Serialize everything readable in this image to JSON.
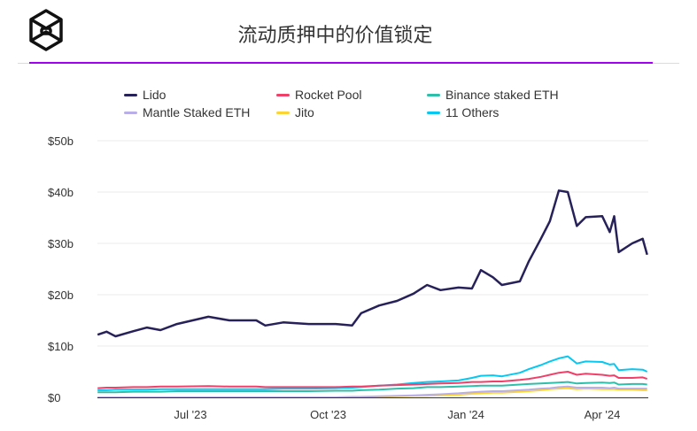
{
  "header": {
    "title": "流动质押中的价值锁定",
    "logo": "cube-logo"
  },
  "accent": "#a100f2",
  "chart_data": {
    "type": "line",
    "title": "流动质押中的价值锁定",
    "ylim": [
      0,
      50
    ],
    "yticks": [
      "$0",
      "$10b",
      "$20b",
      "$30b",
      "$40b",
      "$50b"
    ],
    "ytick_values": [
      0,
      10,
      20,
      30,
      40,
      50
    ],
    "xticks": [
      "Jul '23",
      "Oct '23",
      "Jan '24",
      "Apr '24"
    ],
    "xtick_dates": [
      "2023-07-01",
      "2023-10-01",
      "2024-01-01",
      "2024-04-01"
    ],
    "grid": true,
    "legend_placement": "top",
    "x": [
      "2023-04-30",
      "2023-05-06",
      "2023-05-12",
      "2023-05-24",
      "2023-06-02",
      "2023-06-11",
      "2023-06-22",
      "2023-07-13",
      "2023-07-27",
      "2023-08-14",
      "2023-08-20",
      "2023-09-01",
      "2023-09-18",
      "2023-10-06",
      "2023-10-17",
      "2023-10-23",
      "2023-11-04",
      "2023-11-16",
      "2023-11-27",
      "2023-12-06",
      "2023-12-15",
      "2023-12-27",
      "2024-01-05",
      "2024-01-11",
      "2024-01-19",
      "2024-01-25",
      "2024-02-06",
      "2024-02-12",
      "2024-02-20",
      "2024-02-26",
      "2024-03-03",
      "2024-03-09",
      "2024-03-15",
      "2024-03-21",
      "2024-04-01",
      "2024-04-06",
      "2024-04-09",
      "2024-04-12",
      "2024-04-21",
      "2024-04-28",
      "2024-05-01"
    ],
    "series": [
      {
        "name": "Lido",
        "color": "#27215a",
        "values": [
          12.2,
          12.8,
          11.9,
          12.9,
          13.6,
          13.1,
          14.3,
          15.7,
          15.0,
          15.0,
          14.0,
          14.6,
          14.3,
          14.3,
          14.0,
          16.4,
          17.9,
          18.8,
          20.2,
          21.9,
          20.9,
          21.4,
          21.2,
          24.8,
          23.4,
          21.9,
          22.6,
          26.5,
          30.9,
          34.3,
          40.3,
          40.0,
          33.4,
          35.1,
          35.3,
          32.2,
          35.3,
          28.3,
          30.0,
          30.9,
          27.8
        ]
      },
      {
        "name": "Rocket Pool",
        "color": "#f0406a",
        "values": [
          1.8,
          1.9,
          1.9,
          2.0,
          2.0,
          2.1,
          2.1,
          2.2,
          2.1,
          2.1,
          2.0,
          2.0,
          2.0,
          2.0,
          2.1,
          2.1,
          2.3,
          2.4,
          2.5,
          2.6,
          2.7,
          2.8,
          3.0,
          3.0,
          3.1,
          3.1,
          3.4,
          3.6,
          4.0,
          4.4,
          4.8,
          5.0,
          4.4,
          4.6,
          4.4,
          4.2,
          4.3,
          3.8,
          3.8,
          3.9,
          3.6
        ]
      },
      {
        "name": "Binance staked ETH",
        "color": "#2ebfab",
        "values": [
          1.0,
          1.0,
          1.0,
          1.1,
          1.1,
          1.1,
          1.2,
          1.2,
          1.2,
          1.2,
          1.2,
          1.2,
          1.2,
          1.3,
          1.3,
          1.4,
          1.5,
          1.7,
          1.8,
          2.0,
          2.0,
          2.1,
          2.2,
          2.3,
          2.3,
          2.3,
          2.5,
          2.6,
          2.7,
          2.8,
          2.9,
          3.0,
          2.7,
          2.8,
          2.9,
          2.8,
          2.9,
          2.5,
          2.6,
          2.6,
          2.5
        ]
      },
      {
        "name": "Mantle Staked ETH",
        "color": "#b9aee8",
        "values": [
          0,
          0,
          0,
          0,
          0,
          0,
          0,
          0,
          0,
          0,
          0,
          0,
          0,
          0,
          0.1,
          0.1,
          0.2,
          0.3,
          0.4,
          0.5,
          0.6,
          0.8,
          1.0,
          1.1,
          1.2,
          1.2,
          1.4,
          1.5,
          1.7,
          1.8,
          2.0,
          2.1,
          1.9,
          1.9,
          1.9,
          1.8,
          1.9,
          1.7,
          1.7,
          1.7,
          1.7
        ]
      },
      {
        "name": "Jito",
        "color": "#fcd535",
        "values": [
          0,
          0,
          0,
          0,
          0,
          0,
          0,
          0,
          0,
          0,
          0,
          0,
          0,
          0,
          0,
          0.1,
          0.1,
          0.2,
          0.3,
          0.3,
          0.4,
          0.5,
          0.7,
          0.8,
          0.9,
          0.9,
          1.1,
          1.2,
          1.4,
          1.6,
          1.7,
          1.8,
          1.6,
          1.7,
          1.6,
          1.6,
          1.6,
          1.5,
          1.5,
          1.4,
          1.4
        ]
      },
      {
        "name": "11 Others",
        "color": "#06c8f0",
        "values": [
          1.4,
          1.4,
          1.5,
          1.5,
          1.5,
          1.6,
          1.6,
          1.6,
          1.6,
          1.6,
          1.6,
          1.7,
          1.7,
          1.8,
          1.9,
          2.0,
          2.3,
          2.5,
          2.8,
          3.0,
          3.1,
          3.3,
          3.8,
          4.2,
          4.3,
          4.1,
          4.8,
          5.5,
          6.3,
          7.0,
          7.6,
          8.0,
          6.6,
          7.0,
          6.9,
          6.4,
          6.5,
          5.3,
          5.5,
          5.4,
          5.0
        ]
      }
    ]
  }
}
